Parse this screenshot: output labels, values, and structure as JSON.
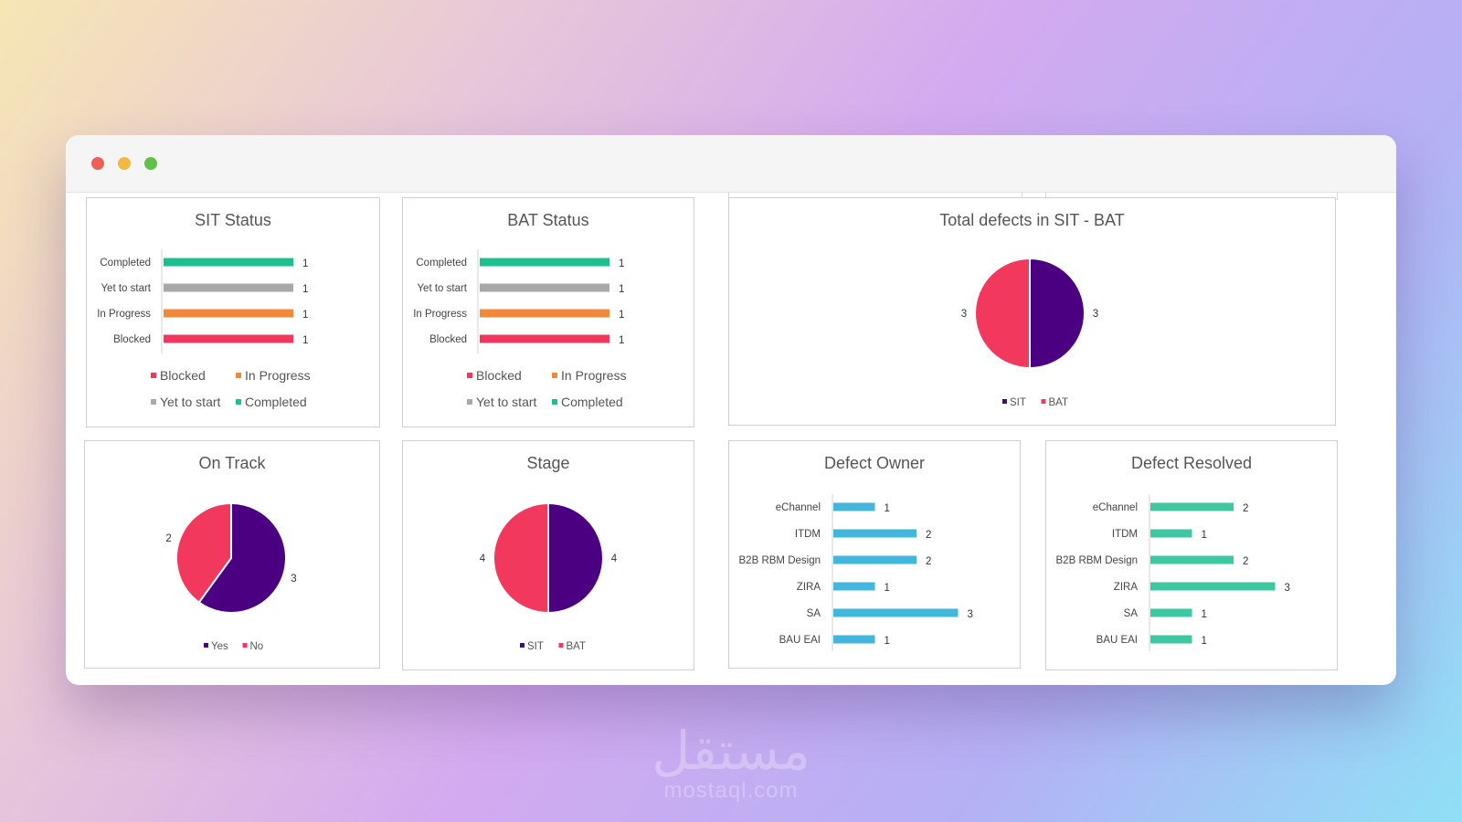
{
  "window": {
    "controls": [
      "close",
      "minimize",
      "maximize"
    ]
  },
  "colors": {
    "completed": "#1dbf8e",
    "yet": "#a8a8a8",
    "inprogress": "#ef8a3d",
    "blocked": "#f0385f",
    "sit": "#4b0082",
    "bat": "#f2385c",
    "owner": "#43b6dd",
    "resolved": "#3ec7a0"
  },
  "chart_data": [
    {
      "id": "sit",
      "type": "bar",
      "orientation": "horizontal",
      "title": "SIT Status",
      "categories": [
        "Completed",
        "Yet to start",
        "In Progress",
        "Blocked"
      ],
      "values": [
        1,
        1,
        1,
        1
      ],
      "legend": [
        "Blocked",
        "In Progress",
        "Yet to start",
        "Completed"
      ]
    },
    {
      "id": "bat",
      "type": "bar",
      "orientation": "horizontal",
      "title": "BAT Status",
      "categories": [
        "Completed",
        "Yet to start",
        "In Progress",
        "Blocked"
      ],
      "values": [
        1,
        1,
        1,
        1
      ],
      "legend": [
        "Blocked",
        "In Progress",
        "Yet to start",
        "Completed"
      ]
    },
    {
      "id": "defects",
      "type": "pie",
      "title": "Total defects in SIT - BAT",
      "labels": [
        "SIT",
        "BAT"
      ],
      "values": [
        3,
        3
      ],
      "legend": [
        "SIT",
        "BAT"
      ]
    },
    {
      "id": "ontrack",
      "type": "pie",
      "title": "On Track",
      "labels": [
        "Yes",
        "No"
      ],
      "values": [
        3,
        2
      ],
      "legend": [
        "Yes",
        "No"
      ]
    },
    {
      "id": "stage",
      "type": "pie",
      "title": "Stage",
      "labels": [
        "SIT",
        "BAT"
      ],
      "values": [
        4,
        4
      ],
      "legend": [
        "SIT",
        "BAT"
      ]
    },
    {
      "id": "owner",
      "type": "bar",
      "orientation": "horizontal",
      "title": "Defect Owner",
      "categories": [
        "eChannel",
        "ITDM",
        "B2B RBM Design",
        "ZIRA",
        "SA",
        "BAU EAI"
      ],
      "values": [
        1,
        2,
        2,
        1,
        3,
        1
      ]
    },
    {
      "id": "resolved",
      "type": "bar",
      "orientation": "horizontal",
      "title": "Defect Resolved",
      "categories": [
        "eChannel",
        "ITDM",
        "B2B RBM Design",
        "ZIRA",
        "SA",
        "BAU EAI"
      ],
      "values": [
        2,
        1,
        2,
        3,
        1,
        1
      ]
    }
  ],
  "watermark": {
    "arabic": "مستقل",
    "latin": "mostaql.com"
  }
}
